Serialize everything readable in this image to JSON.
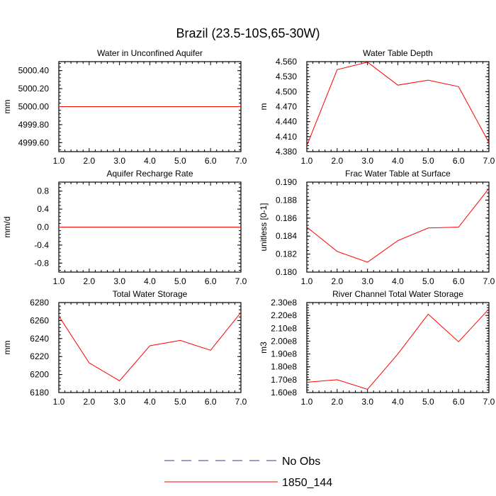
{
  "page_title": "Brazil (23.5-10S,65-30W)",
  "colors": {
    "series": "#ff0000",
    "obs": "#3a3a8c",
    "axis": "#000000"
  },
  "legend": {
    "items": [
      {
        "label": "No Obs",
        "style": "dashed",
        "color": "#3a3a8c"
      },
      {
        "label": "1850_144",
        "style": "solid",
        "color": "#ff0000"
      }
    ]
  },
  "chart_data": [
    {
      "type": "line",
      "title": "Water in Unconfined Aquifer",
      "ylabel": "mm",
      "x": [
        1,
        2,
        3,
        4,
        5,
        6,
        7
      ],
      "xlim": [
        1,
        7
      ],
      "xticks": [
        1,
        2,
        3,
        4,
        5,
        6,
        7
      ],
      "xtick_labels": [
        "1.0",
        "2.0",
        "3.0",
        "4.0",
        "5.0",
        "6.0",
        "7.0"
      ],
      "ylim": [
        4999.5,
        5000.5
      ],
      "yticks": [
        4999.6,
        4999.8,
        5000.0,
        5000.2,
        5000.4
      ],
      "ytick_labels": [
        "4999.60",
        "4999.80",
        "5000.00",
        "5000.20",
        "5000.40"
      ],
      "series": [
        {
          "values": [
            5000,
            5000,
            5000,
            5000,
            5000,
            5000,
            5000
          ]
        }
      ]
    },
    {
      "type": "line",
      "title": "Water Table Depth",
      "ylabel": "m",
      "x": [
        1,
        2,
        3,
        4,
        5,
        6,
        7
      ],
      "xlim": [
        1,
        7
      ],
      "xticks": [
        1,
        2,
        3,
        4,
        5,
        6,
        7
      ],
      "xtick_labels": [
        "1.0",
        "2.0",
        "3.0",
        "4.0",
        "5.0",
        "6.0",
        "7.0"
      ],
      "ylim": [
        4.38,
        4.56
      ],
      "yticks": [
        4.38,
        4.41,
        4.44,
        4.47,
        4.5,
        4.53,
        4.56
      ],
      "ytick_labels": [
        "4.380",
        "4.410",
        "4.440",
        "4.470",
        "4.500",
        "4.530",
        "4.560"
      ],
      "series": [
        {
          "values": [
            4.392,
            4.544,
            4.559,
            4.513,
            4.523,
            4.51,
            4.398
          ]
        }
      ]
    },
    {
      "type": "line",
      "title": "Aquifer Recharge Rate",
      "ylabel": "mm/d",
      "x": [
        1,
        2,
        3,
        4,
        5,
        6,
        7
      ],
      "xlim": [
        1,
        7
      ],
      "xticks": [
        1,
        2,
        3,
        4,
        5,
        6,
        7
      ],
      "xtick_labels": [
        "1.0",
        "2.0",
        "3.0",
        "4.0",
        "5.0",
        "6.0",
        "7.0"
      ],
      "ylim": [
        -1.0,
        1.0
      ],
      "yticks": [
        -0.8,
        -0.4,
        0.0,
        0.4,
        0.8
      ],
      "ytick_labels": [
        "-0.8",
        "-0.4",
        "0.0",
        "0.4",
        "0.8"
      ],
      "series": [
        {
          "values": [
            0,
            0,
            0,
            0,
            0,
            0,
            0
          ]
        }
      ]
    },
    {
      "type": "line",
      "title": "Frac Water Table at Surface",
      "ylabel": "unitless [0-1]",
      "x": [
        1,
        2,
        3,
        4,
        5,
        6,
        7
      ],
      "xlim": [
        1,
        7
      ],
      "xticks": [
        1,
        2,
        3,
        4,
        5,
        6,
        7
      ],
      "xtick_labels": [
        "1.0",
        "2.0",
        "3.0",
        "4.0",
        "5.0",
        "6.0",
        "7.0"
      ],
      "ylim": [
        0.18,
        0.19
      ],
      "yticks": [
        0.18,
        0.182,
        0.184,
        0.186,
        0.188,
        0.19
      ],
      "ytick_labels": [
        "0.180",
        "0.182",
        "0.184",
        "0.186",
        "0.188",
        "0.190"
      ],
      "series": [
        {
          "values": [
            0.185,
            0.1823,
            0.1811,
            0.1835,
            0.1849,
            0.185,
            0.1893
          ]
        }
      ]
    },
    {
      "type": "line",
      "title": "Total Water Storage",
      "ylabel": "mm",
      "x": [
        1,
        2,
        3,
        4,
        5,
        6,
        7
      ],
      "xlim": [
        1,
        7
      ],
      "xticks": [
        1,
        2,
        3,
        4,
        5,
        6,
        7
      ],
      "xtick_labels": [
        "1.0",
        "2.0",
        "3.0",
        "4.0",
        "5.0",
        "6.0",
        "7.0"
      ],
      "ylim": [
        6180,
        6280
      ],
      "yticks": [
        6180,
        6200,
        6220,
        6240,
        6260,
        6280
      ],
      "ytick_labels": [
        "6180",
        "6200",
        "6220",
        "6240",
        "6260",
        "6280"
      ],
      "series": [
        {
          "values": [
            6265,
            6213,
            6193,
            6232,
            6238,
            6227,
            6269
          ]
        }
      ]
    },
    {
      "type": "line",
      "title": "River Channel Total Water Storage",
      "ylabel": "m3",
      "x": [
        1,
        2,
        3,
        4,
        5,
        6,
        7
      ],
      "xlim": [
        1,
        7
      ],
      "xticks": [
        1,
        2,
        3,
        4,
        5,
        6,
        7
      ],
      "xtick_labels": [
        "1.0",
        "2.0",
        "3.0",
        "4.0",
        "5.0",
        "6.0",
        "7.0"
      ],
      "ylim": [
        160000000,
        230000000
      ],
      "yticks": [
        160000000,
        170000000,
        180000000,
        190000000,
        200000000,
        210000000,
        220000000,
        230000000
      ],
      "ytick_labels": [
        "1.60e8",
        "1.70e8",
        "1.80e8",
        "1.90e8",
        "2.00e8",
        "2.10e8",
        "2.20e8",
        "2.30e8"
      ],
      "series": [
        {
          "values": [
            168000000,
            170000000,
            162500000,
            190000000,
            221000000,
            199500000,
            225000000
          ]
        }
      ]
    }
  ]
}
